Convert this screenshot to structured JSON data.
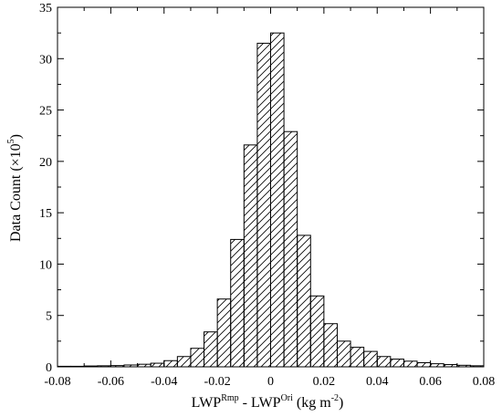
{
  "chart_data": {
    "type": "bar",
    "title": "",
    "xlabel": {
      "prefix": "LWP",
      "sup1": "Rmp",
      "middle": " - LWP",
      "sup2": "Ori",
      "suffix_pre": " (kg m",
      "suffix_sup": "-2",
      "suffix_post": ")"
    },
    "ylabel": {
      "prefix": "Data Count (×10",
      "sup": "5",
      "suffix": ")"
    },
    "xlim": [
      -0.08,
      0.08
    ],
    "ylim": [
      0,
      35
    ],
    "x_tick_labels": [
      "-0.08",
      "-0.06",
      "-0.04",
      "-0.02",
      "0",
      "0.02",
      "0.04",
      "0.06",
      "0.08"
    ],
    "x_ticks": [
      -0.08,
      -0.06,
      -0.04,
      -0.02,
      0,
      0.02,
      0.04,
      0.06,
      0.08
    ],
    "y_tick_labels": [
      "0",
      "5",
      "10",
      "15",
      "20",
      "25",
      "30",
      "35"
    ],
    "y_ticks": [
      0,
      5,
      10,
      15,
      20,
      25,
      30,
      35
    ],
    "bin_width": 0.005,
    "bin_starts": [
      -0.08,
      -0.075,
      -0.07,
      -0.065,
      -0.06,
      -0.055,
      -0.05,
      -0.045,
      -0.04,
      -0.035,
      -0.03,
      -0.025,
      -0.02,
      -0.015,
      -0.01,
      -0.005,
      0,
      0.005,
      0.01,
      0.015,
      0.02,
      0.025,
      0.03,
      0.035,
      0.04,
      0.045,
      0.05,
      0.055,
      0.06,
      0.065,
      0.07,
      0.075
    ],
    "values": [
      0.05,
      0.05,
      0.08,
      0.1,
      0.12,
      0.18,
      0.25,
      0.35,
      0.6,
      1.0,
      1.8,
      3.4,
      6.6,
      12.4,
      21.6,
      31.5,
      32.5,
      22.9,
      12.8,
      6.9,
      4.2,
      2.5,
      1.9,
      1.5,
      1.0,
      0.75,
      0.55,
      0.4,
      0.3,
      0.22,
      0.15,
      0.1
    ],
    "fill_pattern": "diagonal-hatch",
    "bar_edge_color": "#000000",
    "grid": false,
    "legend": "none"
  }
}
